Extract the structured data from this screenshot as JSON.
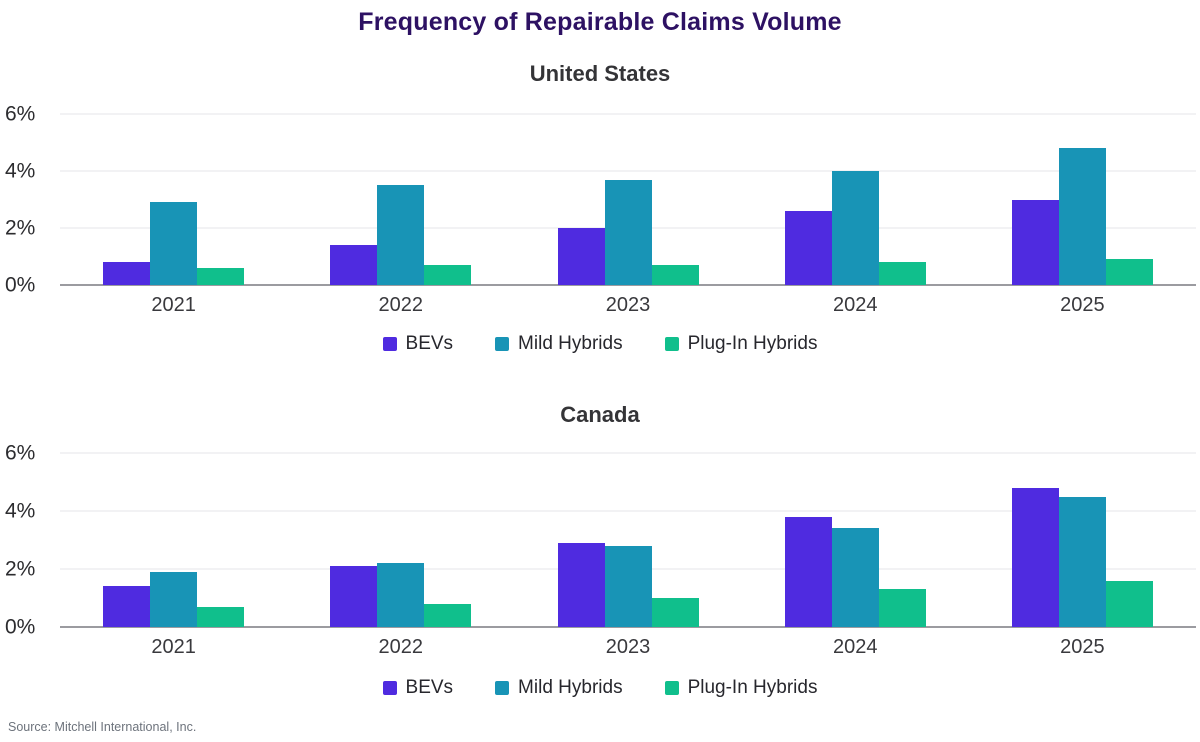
{
  "page": {
    "title": "Frequency of Repairable Claims Volume",
    "source": "Source: Mitchell International, Inc."
  },
  "colors": {
    "title": "#2D1163",
    "bev": "#4F2BE0",
    "mild_hybrid": "#1894B6",
    "plug_in_hybrid": "#10BF8C",
    "gridline": "#e6e6e8",
    "baseline": "#9b9ba0"
  },
  "chart_data": [
    {
      "type": "bar",
      "title": "United States",
      "categories": [
        "2021",
        "2022",
        "2023",
        "2024",
        "2025"
      ],
      "series": [
        {
          "name": "BEVs",
          "color_key": "bev",
          "values": [
            0.8,
            1.4,
            2.0,
            2.6,
            3.0
          ]
        },
        {
          "name": "Mild Hybrids",
          "color_key": "mild_hybrid",
          "values": [
            2.9,
            3.5,
            3.7,
            4.0,
            4.8
          ]
        },
        {
          "name": "Plug-In Hybrids",
          "color_key": "plug_in_hybrid",
          "values": [
            0.6,
            0.7,
            0.7,
            0.8,
            0.9
          ]
        }
      ],
      "xlabel": "",
      "ylabel": "",
      "ylim": [
        0,
        6
      ],
      "y_ticks": [
        {
          "label": "6%",
          "value": 6
        },
        {
          "label": "4%",
          "value": 4
        },
        {
          "label": "2%",
          "value": 2
        },
        {
          "label": "0%",
          "value": 0
        }
      ],
      "grid": true,
      "legend_position": "bottom"
    },
    {
      "type": "bar",
      "title": "Canada",
      "categories": [
        "2021",
        "2022",
        "2023",
        "2024",
        "2025"
      ],
      "series": [
        {
          "name": "BEVs",
          "color_key": "bev",
          "values": [
            1.4,
            2.1,
            2.9,
            3.8,
            4.8
          ]
        },
        {
          "name": "Mild Hybrids",
          "color_key": "mild_hybrid",
          "values": [
            1.9,
            2.2,
            2.8,
            3.4,
            4.5
          ]
        },
        {
          "name": "Plug-In Hybrids",
          "color_key": "plug_in_hybrid",
          "values": [
            0.7,
            0.8,
            1.0,
            1.3,
            1.6
          ]
        }
      ],
      "xlabel": "",
      "ylabel": "",
      "ylim": [
        0,
        6
      ],
      "y_ticks": [
        {
          "label": "6%",
          "value": 6
        },
        {
          "label": "4%",
          "value": 4
        },
        {
          "label": "2%",
          "value": 2
        },
        {
          "label": "0%",
          "value": 0
        }
      ],
      "grid": true,
      "legend_position": "bottom"
    }
  ]
}
